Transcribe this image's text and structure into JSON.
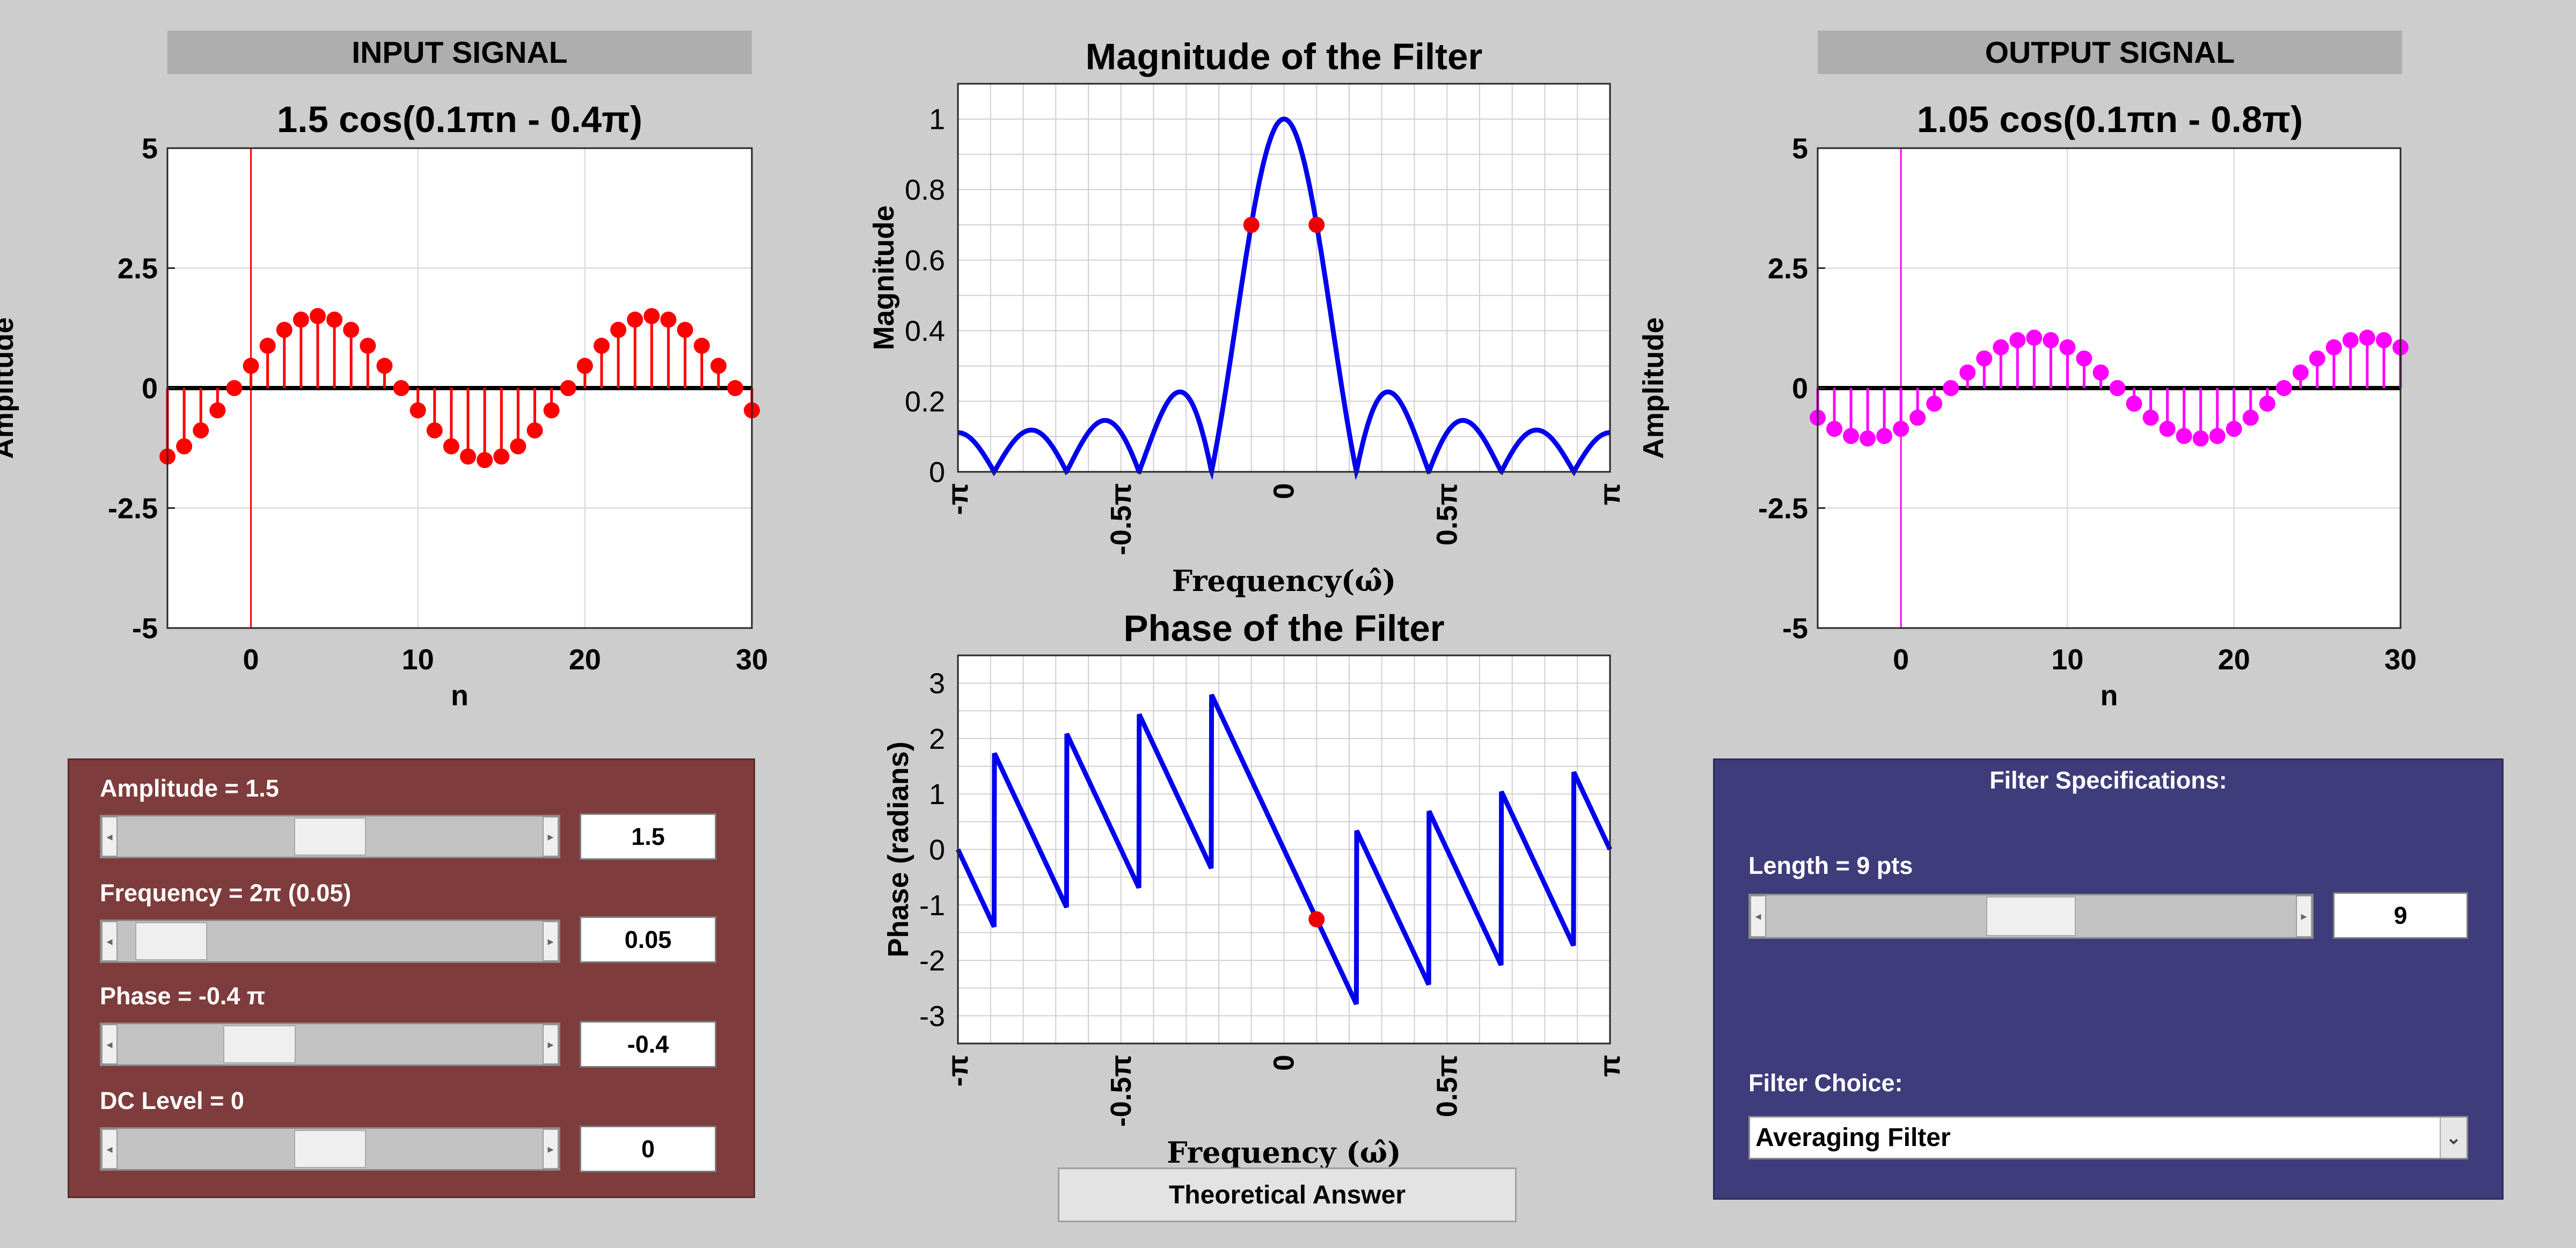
{
  "input": {
    "banner": "INPUT SIGNAL",
    "title": "1.5 cos(0.1πn - 0.4π)",
    "xlabel": "n",
    "ylabel": "Amplitude",
    "yticks": [
      "5",
      "2.5",
      "0",
      "-2.5",
      "-5"
    ],
    "xticks": [
      "0",
      "10",
      "20",
      "30"
    ],
    "color": "#ff0000"
  },
  "output": {
    "banner": "OUTPUT SIGNAL",
    "title": "1.05 cos(0.1πn - 0.8π)",
    "xlabel": "n",
    "ylabel": "Amplitude",
    "yticks": [
      "5",
      "2.5",
      "0",
      "-2.5",
      "-5"
    ],
    "xticks": [
      "0",
      "10",
      "20",
      "30"
    ],
    "color": "#ff00ff"
  },
  "magnitude": {
    "title": "Magnitude of the Filter",
    "ylabel": "Magnitude",
    "xlabel": "Frequency(ω̂)",
    "yticks": [
      "1",
      "0.8",
      "0.6",
      "0.4",
      "0.2",
      "0"
    ],
    "xticks": [
      "-π",
      "-0.5π",
      "0",
      "0.5π",
      "π"
    ]
  },
  "phase": {
    "title": "Phase of the Filter",
    "ylabel": "Phase (radians)",
    "xlabel": "Frequency (ω̂)",
    "yticks": [
      "3",
      "2",
      "1",
      "0",
      "-1",
      "-2",
      "-3"
    ],
    "xticks": [
      "-π",
      "-0.5π",
      "0",
      "0.5π",
      "π"
    ]
  },
  "controls": {
    "amplitude_label": "Amplitude = 1.5",
    "amplitude_value": "1.5",
    "amplitude_level": 0.5,
    "frequency_label": "Frequency = 2π (0.05)",
    "frequency_value": "0.05",
    "frequency_level": 0.05,
    "phase_label": "Phase = -0.4 π",
    "phase_value": "-0.4",
    "phase_level": 0.3,
    "dc_label": "DC Level = 0",
    "dc_value": "0",
    "dc_level": 0.5
  },
  "filter_spec": {
    "heading": "Filter Specifications:",
    "length_label": "Length = 9 pts",
    "length_value": "9",
    "length_level": 0.5,
    "choice_label": "Filter Choice:",
    "choice_value": "Averaging Filter"
  },
  "theory_button": "Theoretical Answer",
  "colors": {
    "control_panel": "#7f3c3c",
    "filter_panel": "#3f3c7b",
    "filter_curve": "#0000ee",
    "marker": "#ee0000"
  },
  "chart_data": [
    {
      "type": "scatter",
      "title": "1.5 cos(0.1πn - 0.4π)",
      "xlabel": "n",
      "ylabel": "Amplitude",
      "xlim": [
        -5,
        30
      ],
      "ylim": [
        -5,
        5
      ],
      "series": [
        {
          "n_start": -5,
          "n_end": 30,
          "amplitude": 1.5,
          "omega": 0.1,
          "phase": -0.4
        }
      ]
    },
    {
      "type": "scatter",
      "title": "1.05 cos(0.1πn - 0.8π)",
      "xlabel": "n",
      "ylabel": "Amplitude",
      "xlim": [
        -5,
        30
      ],
      "ylim": [
        -5,
        5
      ],
      "series": [
        {
          "n_start": -5,
          "n_end": 30,
          "amplitude": 1.05,
          "omega": 0.1,
          "phase": -0.8
        }
      ]
    },
    {
      "type": "line",
      "title": "Magnitude of the Filter",
      "xlabel": "Frequency(ω̂)",
      "ylabel": "Magnitude",
      "xlim": [
        -1,
        1
      ],
      "ylim": [
        0,
        1.1
      ],
      "filter_length": 9,
      "markers": [
        {
          "x": -0.1,
          "y": 0.7
        },
        {
          "x": 0.1,
          "y": 0.7
        }
      ]
    },
    {
      "type": "line",
      "title": "Phase of the Filter",
      "xlabel": "Frequency (ω̂)",
      "ylabel": "Phase (radians)",
      "xlim": [
        -1,
        1
      ],
      "ylim": [
        -3.5,
        3.5
      ],
      "filter_length": 9,
      "markers": [
        {
          "x": 0.1,
          "y": -1.26
        }
      ]
    }
  ]
}
